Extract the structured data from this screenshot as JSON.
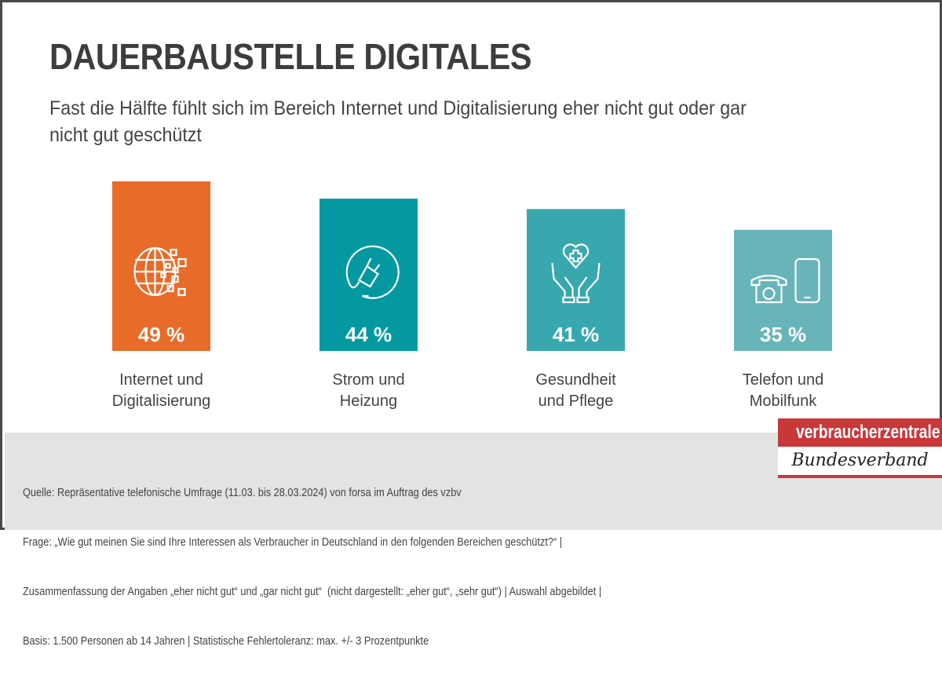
{
  "title": "DAUERBAUSTELLE DIGITALES",
  "subtitle": "Fast die Hälfte fühlt sich im Bereich Internet und Digitalisierung eher nicht gut oder gar nicht gut geschützt",
  "chart_data": {
    "type": "bar",
    "categories": [
      "Internet und\nDigitalisierung",
      "Strom und\nHeizung",
      "Gesundheit\nund Pflege",
      "Telefon und\nMobilfunk"
    ],
    "values": [
      49,
      44,
      41,
      35
    ],
    "value_labels": [
      "49 %",
      "44 %",
      "41 %",
      "35 %"
    ],
    "icons": [
      "globe-digital-icon",
      "power-plug-icon",
      "hands-heart-icon",
      "telephone-mobile-icon"
    ],
    "colors": [
      "#E96B2A",
      "#0499A1",
      "#38A8AE",
      "#68B4B9"
    ],
    "ylim": [
      0,
      49
    ],
    "grid": false
  },
  "footer": {
    "lines": [
      "Quelle: Repräsentative telefonische Umfrage (11.03. bis 28.03.2024) von forsa im Auftrag des vzbv",
      "Frage: „Wie gut meinen Sie sind Ihre Interessen als Verbraucher in Deutschland in den folgenden Bereichen geschützt?“ |",
      "Zusammenfassung der Angaben „eher nicht gut“ und „gar nicht gut“  (nicht dargestellt: „eher gut“, „sehr gut“) | Auswahl abgebildet |",
      "Basis: 1.500 Personen ab 14 Jahren | Statistische Fehlertoleranz: max. +/- 3 Prozentpunkte"
    ]
  },
  "logo": {
    "top": "verbraucherzentrale",
    "bottom": "Bundesverband",
    "color": "#C8373A"
  }
}
